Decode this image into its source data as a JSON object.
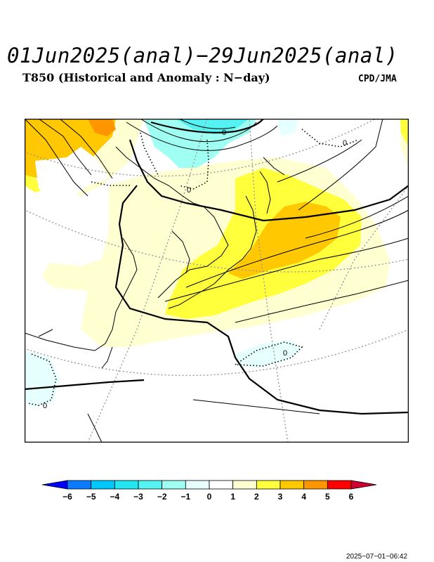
{
  "header": {
    "title": "01Jun2025(anal)−29Jun2025(anal)",
    "subtitle": "T850 (Historical and Anomaly : N−day)",
    "credit": "CPD/JMA"
  },
  "map": {
    "contour_labels": [
      "0",
      "0",
      "0",
      "0",
      "0"
    ],
    "colors": {
      "ocean_bg": "#ffffff",
      "land_outline": "#000000",
      "contour": "#000000",
      "graticule": "#999999"
    }
  },
  "colorbar": {
    "labels": [
      "−6",
      "−5",
      "−4",
      "−3",
      "−2",
      "−1",
      "0",
      "1",
      "2",
      "3",
      "4",
      "5",
      "6"
    ],
    "colors": [
      "#0000ff",
      "#0a7bff",
      "#00c8ff",
      "#22e6f2",
      "#55f2f2",
      "#9ffff2",
      "#e6ffff",
      "#ffffff",
      "#ffffd2",
      "#ffff3c",
      "#ffc800",
      "#ff9600",
      "#ff0000",
      "#d00030"
    ]
  },
  "footer": {
    "timestamp": "2025−07−01−06:42"
  }
}
